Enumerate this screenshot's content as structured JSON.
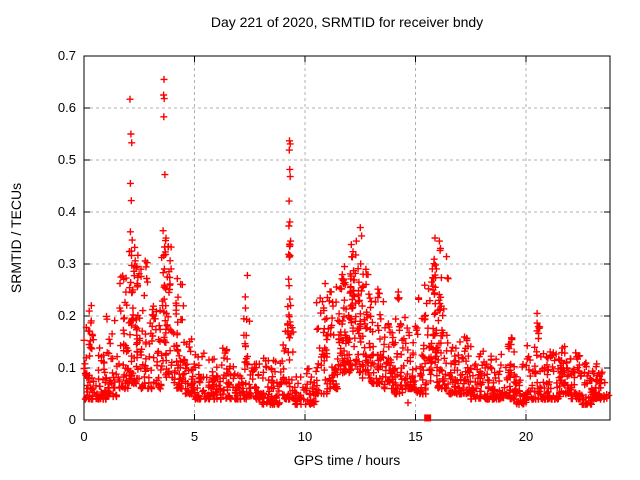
{
  "accent_color": "#ff0000",
  "background_color": "#ffffff",
  "chart_data": {
    "type": "scatter",
    "title": "Day 221 of 2020, SRMTID for receiver bndy",
    "xlabel": "GPS time / hours",
    "ylabel": "SRMTID / TECUs",
    "xlim": [
      0,
      23.8
    ],
    "ylim": [
      0,
      0.7
    ],
    "xticks": [
      0,
      5,
      10,
      15,
      20
    ],
    "yticks": [
      0,
      0.1,
      0.2,
      0.3,
      0.4,
      0.5,
      0.6,
      0.7
    ],
    "grid": true,
    "grid_color": "#b0b0b0",
    "frame_color": "#000000",
    "marker": "plus",
    "marker_color": "#ff0000",
    "marker_size": 7,
    "seed": 221,
    "point_cloud": {
      "comment": "dense scatter ~2000 pts; bins = [hour_start, y_min, y_max, count, optional_skew] over 0.5 h windows; y drawn as min+(max-min)*u^skew",
      "bin_width": 0.5,
      "skew": 2.2,
      "bins": [
        [
          0.0,
          0.04,
          0.19,
          38
        ],
        [
          0.5,
          0.04,
          0.14,
          40
        ],
        [
          1.0,
          0.045,
          0.2,
          36
        ],
        [
          1.5,
          0.06,
          0.28,
          38
        ],
        [
          2.0,
          0.07,
          0.36,
          46,
          1.8
        ],
        [
          2.5,
          0.06,
          0.31,
          42,
          1.8
        ],
        [
          3.0,
          0.06,
          0.28,
          38
        ],
        [
          3.5,
          0.08,
          0.35,
          46,
          1.8
        ],
        [
          4.0,
          0.06,
          0.27,
          40
        ],
        [
          4.5,
          0.05,
          0.16,
          36
        ],
        [
          5.0,
          0.04,
          0.13,
          34
        ],
        [
          5.5,
          0.04,
          0.12,
          34
        ],
        [
          6.0,
          0.04,
          0.14,
          34
        ],
        [
          6.5,
          0.04,
          0.11,
          32
        ],
        [
          7.0,
          0.04,
          0.22,
          36
        ],
        [
          7.5,
          0.04,
          0.12,
          32
        ],
        [
          8.0,
          0.03,
          0.12,
          34
        ],
        [
          8.5,
          0.03,
          0.12,
          36
        ],
        [
          9.0,
          0.04,
          0.18,
          36
        ],
        [
          9.5,
          0.03,
          0.09,
          26
        ],
        [
          10.0,
          0.03,
          0.1,
          30
        ],
        [
          10.5,
          0.05,
          0.24,
          36
        ],
        [
          11.0,
          0.06,
          0.26,
          44
        ],
        [
          11.5,
          0.09,
          0.31,
          50,
          1.5
        ],
        [
          12.0,
          0.09,
          0.33,
          52,
          1.5
        ],
        [
          12.5,
          0.08,
          0.31,
          50,
          1.5
        ],
        [
          13.0,
          0.07,
          0.27,
          46
        ],
        [
          13.5,
          0.06,
          0.23,
          42
        ],
        [
          14.0,
          0.05,
          0.2,
          40
        ],
        [
          14.5,
          0.06,
          0.21,
          40
        ],
        [
          15.0,
          0.05,
          0.26,
          42
        ],
        [
          15.5,
          0.07,
          0.31,
          46,
          1.8
        ],
        [
          16.0,
          0.06,
          0.33,
          44
        ],
        [
          16.5,
          0.05,
          0.16,
          40
        ],
        [
          17.0,
          0.05,
          0.16,
          40
        ],
        [
          17.5,
          0.04,
          0.15,
          36
        ],
        [
          18.0,
          0.04,
          0.14,
          36
        ],
        [
          18.5,
          0.04,
          0.13,
          34
        ],
        [
          19.0,
          0.04,
          0.15,
          36
        ],
        [
          19.5,
          0.03,
          0.12,
          34
        ],
        [
          20.0,
          0.04,
          0.15,
          34
        ],
        [
          20.5,
          0.04,
          0.13,
          34
        ],
        [
          21.0,
          0.04,
          0.14,
          36
        ],
        [
          21.5,
          0.05,
          0.15,
          40
        ],
        [
          22.0,
          0.04,
          0.13,
          40
        ],
        [
          22.5,
          0.03,
          0.11,
          40
        ],
        [
          23.0,
          0.04,
          0.11,
          44
        ],
        [
          23.5,
          0.04,
          0.09,
          12
        ]
      ],
      "streaks": [
        [
          0.3,
          0.08,
          0.215,
          8
        ],
        [
          1.85,
          0.1,
          0.28,
          6
        ],
        [
          2.15,
          0.1,
          0.33,
          12
        ],
        [
          2.45,
          0.12,
          0.32,
          9
        ],
        [
          3.65,
          0.12,
          0.34,
          14
        ],
        [
          4.2,
          0.1,
          0.26,
          7
        ],
        [
          7.35,
          0.1,
          0.29,
          8
        ],
        [
          9.28,
          0.06,
          0.34,
          24
        ],
        [
          10.85,
          0.1,
          0.265,
          8
        ],
        [
          11.75,
          0.12,
          0.3,
          8
        ],
        [
          12.1,
          0.2,
          0.34,
          8
        ],
        [
          12.45,
          0.15,
          0.345,
          10
        ],
        [
          14.2,
          0.2,
          0.25,
          4
        ],
        [
          15.85,
          0.1,
          0.32,
          12
        ],
        [
          16.1,
          0.12,
          0.33,
          8
        ],
        [
          19.3,
          0.08,
          0.16,
          7
        ],
        [
          20.55,
          0.155,
          0.19,
          7
        ],
        [
          21.6,
          0.08,
          0.15,
          7
        ]
      ],
      "outliers": [
        [
          2.08,
          0.617
        ],
        [
          2.12,
          0.55
        ],
        [
          2.16,
          0.533
        ],
        [
          2.1,
          0.455
        ],
        [
          2.14,
          0.422
        ],
        [
          2.1,
          0.362
        ],
        [
          2.18,
          0.346
        ],
        [
          3.62,
          0.655
        ],
        [
          3.6,
          0.625
        ],
        [
          3.63,
          0.618
        ],
        [
          3.61,
          0.583
        ],
        [
          3.66,
          0.472
        ],
        [
          3.58,
          0.364
        ],
        [
          3.69,
          0.345
        ],
        [
          9.3,
          0.537
        ],
        [
          9.33,
          0.531
        ],
        [
          9.29,
          0.519
        ],
        [
          9.31,
          0.482
        ],
        [
          9.33,
          0.468
        ],
        [
          9.28,
          0.421
        ],
        [
          9.31,
          0.381
        ],
        [
          9.27,
          0.373
        ],
        [
          9.35,
          0.344
        ],
        [
          12.5,
          0.37
        ],
        [
          12.56,
          0.354
        ],
        [
          12.32,
          0.344
        ],
        [
          15.88,
          0.35
        ],
        [
          16.08,
          0.344
        ],
        [
          16.13,
          0.33
        ],
        [
          20.5,
          0.205
        ],
        [
          0.33,
          0.22
        ],
        [
          4.22,
          0.272
        ],
        [
          14.66,
          0.033
        ]
      ]
    },
    "special_points": [
      {
        "x": 15.55,
        "y": 0.004,
        "marker": "filled-square",
        "color": "#ff0000"
      }
    ]
  }
}
